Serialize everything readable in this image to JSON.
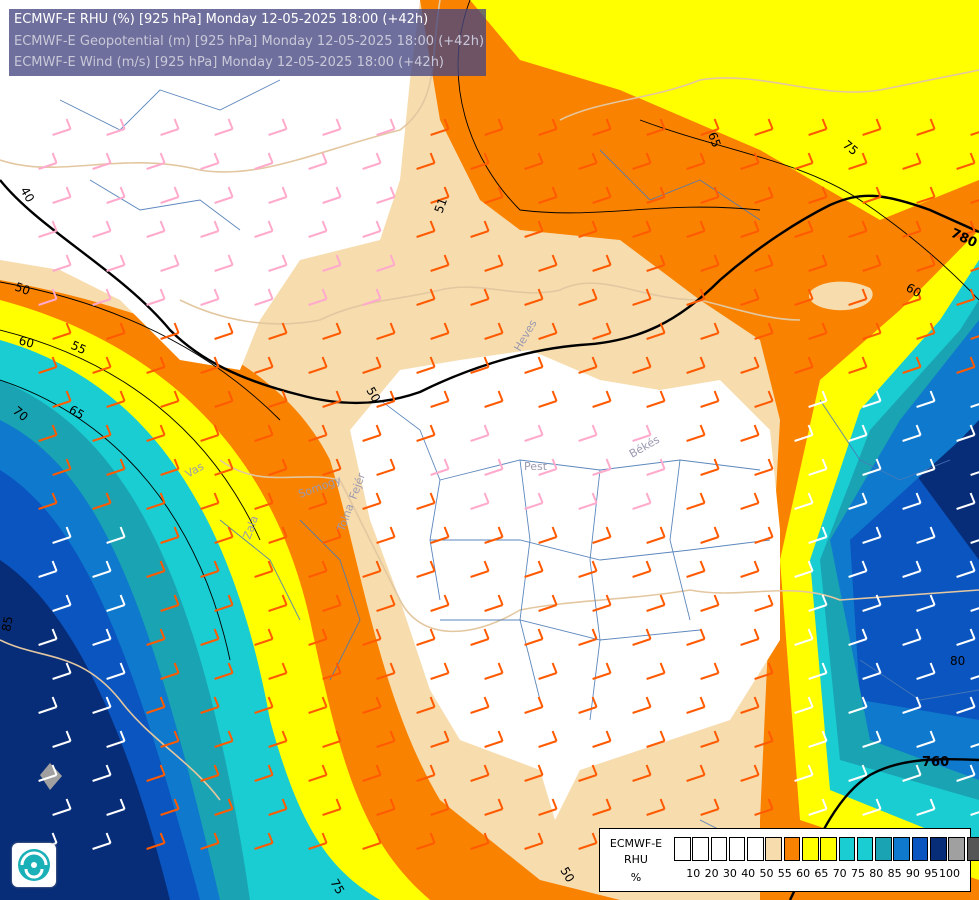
{
  "header": {
    "line1": "ECMWF-E RHU (%) [925 hPa] Monday 12-05-2025 18:00 (+42h)",
    "line2": "ECMWF-E Geopotential (m) [925 hPa] Monday 12-05-2025 18:00 (+42h)",
    "line3": "ECMWF-E Wind (m/s) [925 hPa] Monday 12-05-2025 18:00 (+42h)"
  },
  "legend": {
    "model": "ECMWF-E",
    "variable": "RHU",
    "unit": "%",
    "ticks": [
      "10",
      "20",
      "30",
      "40",
      "50",
      "55",
      "60",
      "65",
      "70",
      "75",
      "80",
      "85",
      "90",
      "95",
      "100"
    ],
    "colors": [
      "#ffffff",
      "#ffffff",
      "#ffffff",
      "#ffffff",
      "#ffffff",
      "#f7dcae",
      "#f98200",
      "#ffff00",
      "#ffff00",
      "#19cdd2",
      "#19cdd2",
      "#1aa3b2",
      "#0e79cd",
      "#0a55c0",
      "#082d78",
      "#a0a0a0",
      "#555555"
    ]
  },
  "palette": {
    "white": "#ffffff",
    "cream": "#f7dcae",
    "orange": "#f98200",
    "yellow": "#ffff00",
    "cyan": "#19cdd2",
    "teal": "#1aa3b2",
    "blue": "#0e79cd",
    "darkblue": "#0a55c0",
    "navy": "#082d78",
    "grey": "#a0a0a0"
  },
  "contour_labels": {
    "rhu": [
      "40",
      "50",
      "51",
      "55",
      "60",
      "65",
      "70",
      "75",
      "80",
      "85"
    ],
    "geopotential": [
      "780",
      "760",
      "50"
    ]
  },
  "region_labels": [
    "Pest",
    "Békés",
    "Fejér",
    "Tolna",
    "Somogy",
    "Zala",
    "Vas",
    "Heves"
  ],
  "wind_colors": {
    "light": "#ffaacc",
    "strong": "#ff5a00",
    "cool": "#ffffff"
  },
  "logo": {
    "name": "ecmwf-logo"
  }
}
